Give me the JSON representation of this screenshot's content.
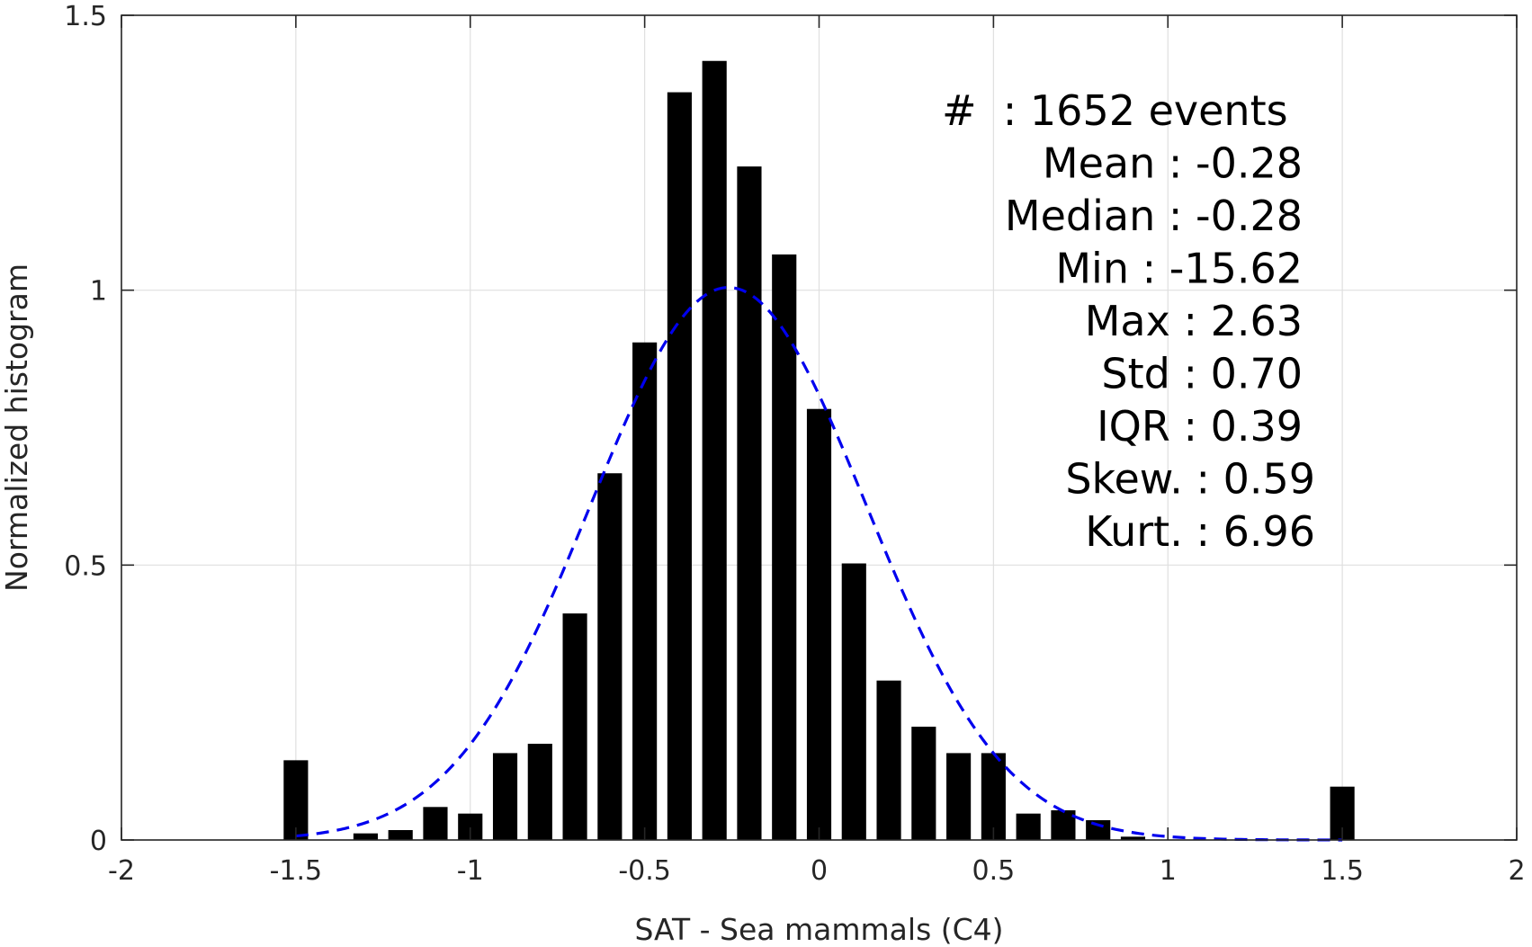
{
  "chart_data": {
    "type": "bar",
    "title": "",
    "xlabel": "SAT - Sea mammals (C4)",
    "ylabel": "Normalized histogram",
    "xlim": [
      -2,
      2
    ],
    "ylim": [
      0,
      1.5
    ],
    "grid": true,
    "x_ticks": [
      -2,
      -1.5,
      -1,
      -0.5,
      0,
      0.5,
      1,
      1.5,
      2
    ],
    "x_tick_labels": [
      "-2",
      "-1.5",
      "-1",
      "-0.5",
      "0",
      "0.5",
      "1",
      "1.5",
      "2"
    ],
    "y_ticks": [
      0,
      0.5,
      1,
      1.5
    ],
    "y_tick_labels": [
      "0",
      "0.5",
      "1",
      "1.5"
    ],
    "bar_width": 0.07,
    "bars": [
      {
        "x": -1.5,
        "y": 0.145
      },
      {
        "x": -1.3,
        "y": 0.012
      },
      {
        "x": -1.2,
        "y": 0.018
      },
      {
        "x": -1.1,
        "y": 0.06
      },
      {
        "x": -1.0,
        "y": 0.048
      },
      {
        "x": -0.9,
        "y": 0.158
      },
      {
        "x": -0.8,
        "y": 0.175
      },
      {
        "x": -0.7,
        "y": 0.412
      },
      {
        "x": -0.6,
        "y": 0.667
      },
      {
        "x": -0.5,
        "y": 0.905
      },
      {
        "x": -0.4,
        "y": 1.36
      },
      {
        "x": -0.3,
        "y": 1.417
      },
      {
        "x": -0.2,
        "y": 1.225
      },
      {
        "x": -0.1,
        "y": 1.065
      },
      {
        "x": 0.0,
        "y": 0.784
      },
      {
        "x": 0.1,
        "y": 0.503
      },
      {
        "x": 0.2,
        "y": 0.29
      },
      {
        "x": 0.3,
        "y": 0.206
      },
      {
        "x": 0.4,
        "y": 0.158
      },
      {
        "x": 0.5,
        "y": 0.158
      },
      {
        "x": 0.6,
        "y": 0.048
      },
      {
        "x": 0.7,
        "y": 0.054
      },
      {
        "x": 0.8,
        "y": 0.036
      },
      {
        "x": 0.9,
        "y": 0.006
      },
      {
        "x": 1.5,
        "y": 0.097
      }
    ],
    "fit_curve": {
      "style": "dashed",
      "color": "#0000ee",
      "type": "gaussian",
      "mean": -0.26,
      "std": 0.395,
      "peak": 1.005,
      "x_range": [
        -1.5,
        1.5
      ]
    },
    "bar_color": "#000000",
    "stats": [
      {
        "label": "#  : 1652 events",
        "align": "left"
      },
      {
        "label": "Mean : -0.28",
        "align": "right"
      },
      {
        "label": "Median : -0.28",
        "align": "right"
      },
      {
        "label": "Min : -15.62",
        "align": "right"
      },
      {
        "label": "Max : 2.63",
        "align": "right"
      },
      {
        "label": "Std : 0.70",
        "align": "right"
      },
      {
        "label": "IQR : 0.39",
        "align": "right"
      },
      {
        "label": "Skew. : 0.59",
        "align": "right"
      },
      {
        "label": "Kurt. : 6.96",
        "align": "right"
      }
    ]
  }
}
